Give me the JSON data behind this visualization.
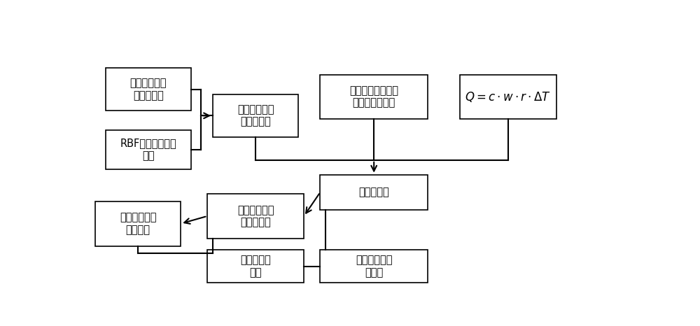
{
  "background": "#ffffff",
  "font_size": 10.5,
  "math_font_size": 12,
  "boxes": {
    "b1": [
      0.112,
      0.8,
      0.158,
      0.17
    ],
    "b2": [
      0.112,
      0.56,
      0.158,
      0.155
    ],
    "b3": [
      0.31,
      0.695,
      0.158,
      0.17
    ],
    "b4": [
      0.528,
      0.77,
      0.198,
      0.175
    ],
    "b5": [
      0.775,
      0.77,
      0.178,
      0.175
    ],
    "b6": [
      0.528,
      0.39,
      0.198,
      0.14
    ],
    "b7": [
      0.31,
      0.295,
      0.178,
      0.178
    ],
    "b8": [
      0.093,
      0.265,
      0.158,
      0.178
    ],
    "b9": [
      0.31,
      0.095,
      0.178,
      0.13
    ],
    "b10": [
      0.528,
      0.095,
      0.198,
      0.13
    ]
  },
  "labels": {
    "b1": "堆芯冷却剂出\n口测点温度",
    "b2": "RBF神经网络曲面\n拟合",
    "b3": "堆芯冷却剂出\n口拟合温度",
    "b4": "各通道功率和堆芯\n冷却剂入口温度",
    "b5": "$Q = c \\cdot w \\cdot r \\cdot \\Delta T$",
    "b6": "各通道流量",
    "b7": "修正后的堆芯\n冷却剂温度",
    "b8": "堆芯燃料棒各\n部分温度",
    "b9": "堆芯热传导\n模型",
    "b10": "堆芯冷却剂计\n算模型"
  }
}
